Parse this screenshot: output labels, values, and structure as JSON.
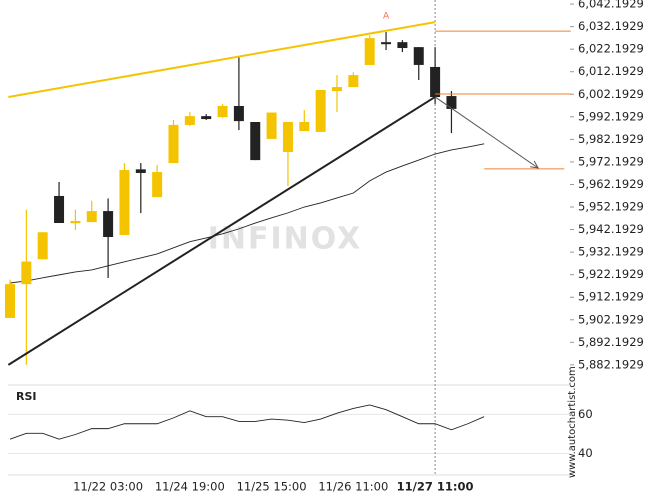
{
  "chart_data": {
    "type": "candlestick",
    "categories": [
      null,
      null,
      null,
      null,
      null,
      null,
      "11/22 03:00",
      null,
      null,
      null,
      null,
      "11/24 19:00",
      null,
      null,
      null,
      null,
      "11/25 15:00",
      null,
      null,
      null,
      null,
      "11/26 11:00",
      null,
      null,
      null,
      null,
      "11/27 11:00",
      null,
      null,
      null
    ],
    "highlight_category": 26,
    "open": [
      5903,
      5918,
      5929,
      5957.1,
      5945,
      5945.5,
      5950.4,
      5939.8,
      5968.9,
      5956.6,
      5971.7,
      5988.6,
      5992.5,
      5992.1,
      5997.0,
      5989.9,
      5982.4,
      5976.6,
      5985.9,
      5985.5,
      6003.6,
      6005.4,
      6015.2,
      6025.3,
      6025.3,
      6023.1,
      6014.3,
      6001.4,
      null,
      null
    ],
    "high": [
      5920,
      5950.9,
      5941,
      5963.3,
      5951,
      5955,
      5956,
      5971.7,
      5971.7,
      5970.8,
      5990.8,
      5994.3,
      5993.4,
      5997.9,
      6018.7,
      5989.9,
      5994.1,
      5989.9,
      5995.2,
      6004.1,
      6010.7,
      6012,
      6028.4,
      6029.8,
      6026.2,
      6023.1,
      6023.1,
      6003.6,
      null,
      null
    ],
    "low": [
      5903,
      5882.2,
      5929,
      5945.1,
      5942,
      5945.5,
      5920.7,
      5939.8,
      5949.5,
      5956.6,
      5971.7,
      5988.1,
      5990.8,
      5991.6,
      5986.3,
      5973.0,
      5982.4,
      5961.5,
      5985.9,
      5985.5,
      5994.3,
      6005.4,
      6015.2,
      6021.8,
      6020.9,
      6008.5,
      5997.9,
      5985,
      null,
      null
    ],
    "close": [
      5918,
      5928,
      5941,
      5945.1,
      5946,
      5950.4,
      5938.9,
      5968.6,
      5967.3,
      5967.7,
      5988.6,
      5992.5,
      5991.2,
      5997.0,
      5990.3,
      5973.0,
      5994.1,
      5989.9,
      5989.9,
      6004.1,
      6005.4,
      6010.7,
      6027.1,
      6024.4,
      6022.7,
      6015.2,
      6000.97,
      5995.7,
      null,
      null
    ],
    "up_color": "#f5c400",
    "down_color": "#222222",
    "ma": {
      "color": "#222222",
      "values": [
        5918.5,
        5919.4,
        5920.8,
        5922.1,
        5923.4,
        5924.3,
        5926.1,
        5927.9,
        5929.6,
        5931.4,
        5934.1,
        5936.8,
        5938.5,
        5940.3,
        5942.5,
        5945.1,
        5947.4,
        5949.6,
        5952.2,
        5954.0,
        5956.2,
        5958.4,
        5963.8,
        5967.7,
        5970.4,
        5973.0,
        5975.7,
        5977.5,
        5978.8,
        5980.2
      ]
    },
    "ylim": [
      5877.7,
      6044
    ],
    "yticks": [
      {
        "value": 6042.1929,
        "label": "6,042.1929"
      },
      {
        "value": 6032.1929,
        "label": "6,032.1929"
      },
      {
        "value": 6022.1929,
        "label": "6,022.1929"
      },
      {
        "value": 6012.1929,
        "label": "6,012.1929"
      },
      {
        "value": 6002.1929,
        "label": "6,002.1929"
      },
      {
        "value": 5992.1929,
        "label": "5,992.1929"
      },
      {
        "value": 5982.1929,
        "label": "5,982.1929"
      },
      {
        "value": 5972.1929,
        "label": "5,972.1929"
      },
      {
        "value": 5962.1929,
        "label": "5,962.1929"
      },
      {
        "value": 5952.1929,
        "label": "5,952.1929"
      },
      {
        "value": 5942.1929,
        "label": "5,942.1929"
      },
      {
        "value": 5932.1929,
        "label": "5,932.1929"
      },
      {
        "value": 5922.1929,
        "label": "5,922.1929"
      },
      {
        "value": 5912.1929,
        "label": "5,912.1929"
      },
      {
        "value": 5902.1929,
        "label": "5,902.1929"
      },
      {
        "value": 5892.1929,
        "label": "5,892.1929"
      },
      {
        "value": 5882.1929,
        "label": "5,882.1929"
      }
    ],
    "trendlines": [
      {
        "color": "#f5c400",
        "x": [
          -0.1,
          26
        ],
        "y": [
          6000.97,
          6034.2
        ]
      },
      {
        "color": "#222222",
        "x": [
          -0.1,
          26
        ],
        "y": [
          5882.2,
          6001.0
        ]
      }
    ],
    "arrow": {
      "color": "#555555",
      "x": [
        26,
        32.3
      ],
      "y": [
        6001.0,
        5969.5
      ]
    },
    "levels": [
      {
        "color": "#f08030",
        "x": [
          26,
          34.3
        ],
        "value": 6030.2
      },
      {
        "color": "#f08030",
        "x": [
          26,
          34.3
        ],
        "value": 6002.3
      },
      {
        "color": "#f08030",
        "x": [
          29,
          33.9
        ],
        "value": 5969.1
      }
    ],
    "marker": {
      "label": "A",
      "color": "#f07050",
      "x": 23,
      "value": 6033.3
    },
    "watermark": "INFINOX",
    "source": "www.autochartist.com",
    "rsi": {
      "title": "RSI",
      "color": "#222222",
      "values": [
        47.3,
        50.3,
        50.3,
        47.3,
        49.7,
        52.7,
        52.7,
        55.2,
        55.2,
        55.2,
        58.2,
        61.8,
        58.8,
        58.8,
        56.4,
        56.4,
        57.6,
        57.0,
        55.8,
        57.6,
        60.6,
        63.0,
        64.8,
        62.4,
        58.8,
        55.2,
        55.2,
        52.1,
        55.2,
        58.8
      ],
      "ylim": [
        29,
        75
      ],
      "yticks": [
        40,
        60
      ]
    }
  }
}
